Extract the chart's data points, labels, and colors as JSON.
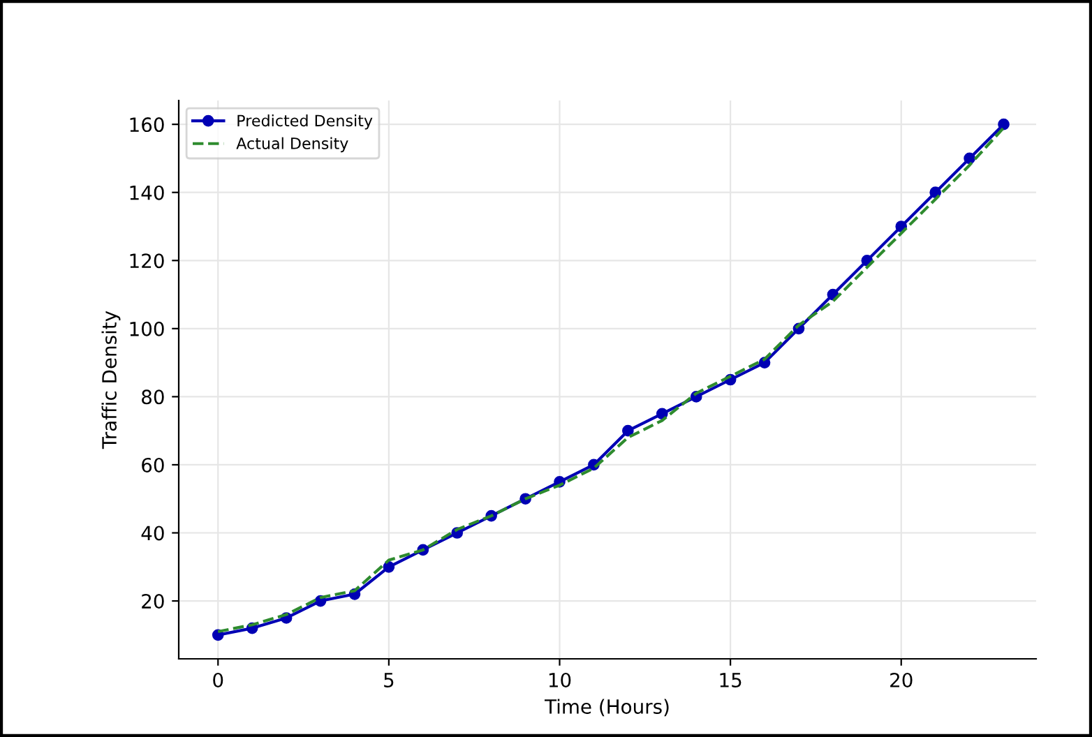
{
  "chart_data": {
    "type": "line",
    "xlabel": "Time (Hours)",
    "ylabel": "Traffic Density",
    "x": [
      0,
      1,
      2,
      3,
      4,
      5,
      6,
      7,
      8,
      9,
      10,
      11,
      12,
      13,
      14,
      15,
      16,
      17,
      18,
      19,
      20,
      21,
      22,
      23
    ],
    "series": [
      {
        "name": "Predicted Density",
        "color": "#0000b4",
        "marker": "circle",
        "line_style": "solid",
        "values": [
          10,
          12,
          15,
          20,
          22,
          30,
          35,
          40,
          45,
          50,
          55,
          60,
          70,
          75,
          80,
          85,
          90,
          100,
          110,
          120,
          130,
          140,
          150,
          160
        ]
      },
      {
        "name": "Actual Density",
        "color": "#2e8b2e",
        "marker": "none",
        "line_style": "dashed",
        "values": [
          11,
          13,
          16,
          21,
          23,
          32,
          35,
          41,
          45,
          50,
          54,
          59,
          68,
          73,
          81,
          86,
          91,
          101,
          108,
          118,
          128,
          138,
          148,
          159
        ]
      }
    ],
    "xlim": [
      -1.15,
      23.95
    ],
    "ylim": [
      3,
      167
    ],
    "xticks": [
      0,
      5,
      10,
      15,
      20
    ],
    "yticks": [
      20,
      40,
      60,
      80,
      100,
      120,
      140,
      160
    ],
    "grid": true,
    "legend": "top left"
  }
}
